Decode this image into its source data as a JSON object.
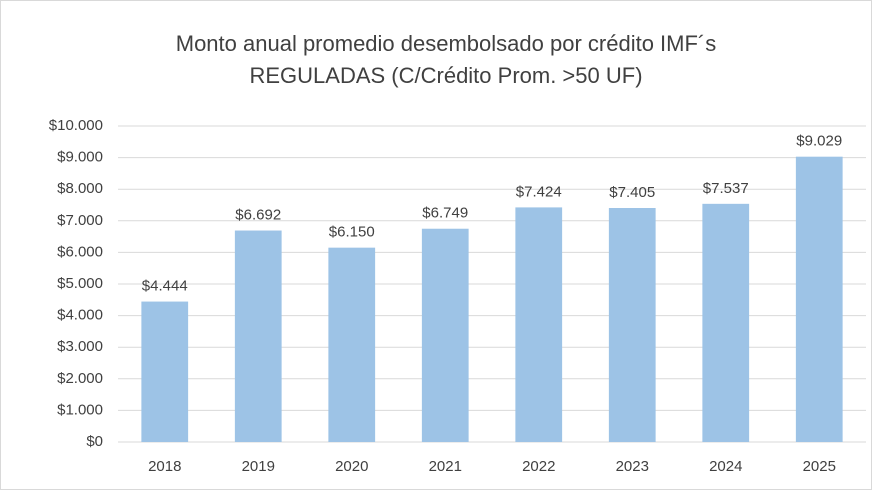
{
  "chart_data": {
    "type": "bar",
    "title": [
      "Monto anual promedio desembolsado por crédito IMF´s",
      "REGULADAS (C/Crédito Prom. >50 UF)"
    ],
    "categories": [
      "2018",
      "2019",
      "2020",
      "2021",
      "2022",
      "2023",
      "2024",
      "2025"
    ],
    "values": [
      4444,
      6692,
      6150,
      6749,
      7424,
      7405,
      7537,
      9029
    ],
    "value_labels": [
      "$4.444",
      "$6.692",
      "$6.150",
      "$6.749",
      "$7.424",
      "$7.405",
      "$7.537",
      "$9.029"
    ],
    "color": "#9dc3e6",
    "ylim": [
      0,
      10000
    ],
    "yticks": [
      {
        "value": 0,
        "label": "$0"
      },
      {
        "value": 1000,
        "label": "$1.000"
      },
      {
        "value": 2000,
        "label": "$2.000"
      },
      {
        "value": 3000,
        "label": "$3.000"
      },
      {
        "value": 4000,
        "label": "$4.000"
      },
      {
        "value": 5000,
        "label": "$5.000"
      },
      {
        "value": 6000,
        "label": "$6.000"
      },
      {
        "value": 7000,
        "label": "$7.000"
      },
      {
        "value": 8000,
        "label": "$8.000"
      },
      {
        "value": 9000,
        "label": "$9.000"
      },
      {
        "value": 10000,
        "label": "$10.000"
      }
    ],
    "grid": true
  }
}
